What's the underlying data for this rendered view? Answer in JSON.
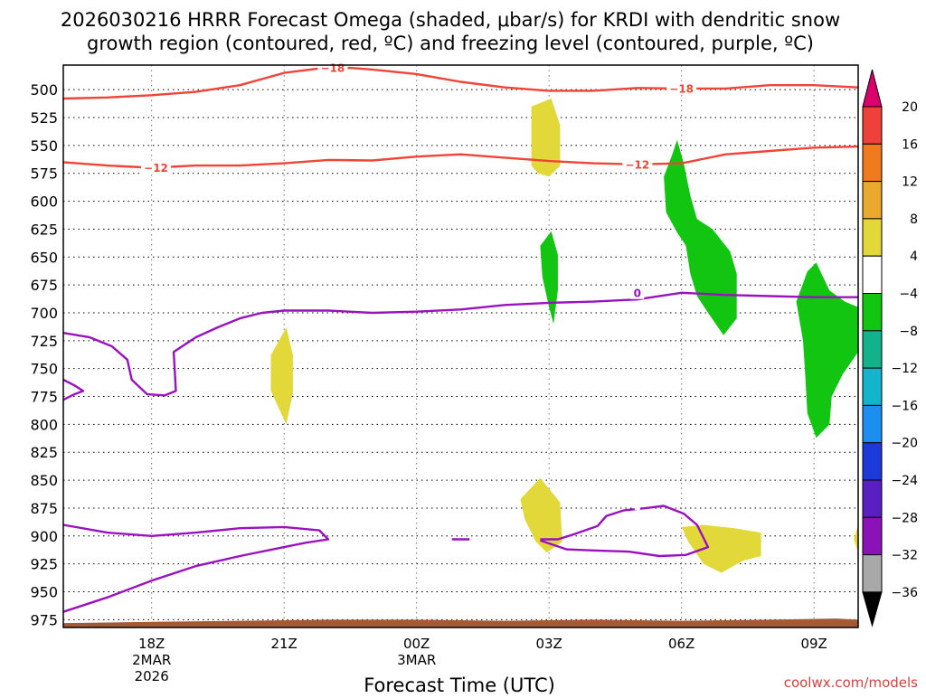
{
  "chart_data": {
    "type": "heatmap",
    "title_lines": [
      "2026030216 HRRR Forecast Omega (shaded, μbar/s) for KRDI with dendritic snow",
      "growth region (contoured, red, ºC) and freezing level (contoured, purple, ºC)"
    ],
    "xlabel": "Forecast Time (UTC)",
    "credit": "coolwx.com/models",
    "x_unit": "hours since 2026-03-02 16Z",
    "xlim": [
      0,
      18
    ],
    "y_unit": "mb",
    "ylim": [
      478,
      982
    ],
    "yticks": [
      500,
      525,
      550,
      575,
      600,
      625,
      650,
      675,
      700,
      725,
      750,
      775,
      800,
      825,
      850,
      875,
      900,
      925,
      950,
      975
    ],
    "xticks": [
      {
        "x": 2,
        "lines": [
          "18Z",
          "2MAR",
          "2026"
        ]
      },
      {
        "x": 5,
        "lines": [
          "21Z"
        ]
      },
      {
        "x": 8,
        "lines": [
          "00Z",
          "3MAR"
        ]
      },
      {
        "x": 11,
        "lines": [
          "03Z"
        ]
      },
      {
        "x": 14,
        "lines": [
          "06Z"
        ]
      },
      {
        "x": 17,
        "lines": [
          "09Z"
        ]
      }
    ],
    "colorbar": {
      "levels": [
        -36,
        -32,
        -28,
        -24,
        -20,
        -16,
        -12,
        -8,
        -4,
        4,
        8,
        12,
        16,
        20
      ],
      "labels": [
        "20",
        "16",
        "12",
        "8",
        "4",
        "−4",
        "−8",
        "−12",
        "−16",
        "−20",
        "−24",
        "−28",
        "−32",
        "−36"
      ],
      "bins": [
        "#d9006e",
        "#f0403c",
        "#f07b1e",
        "#e8a92e",
        "#e3d83a",
        "#ffffff",
        "#11c511",
        "#12b38a",
        "#12b5c9",
        "#1b8ef0",
        "#1b3ad9",
        "#5a1fc0",
        "#8a12b8",
        "#a8a8a8",
        "#000000"
      ]
    },
    "shaded_regions": [
      {
        "value_range": "4 to 8",
        "color": "#e3d83a",
        "points": [
          [
            10.6,
            568
          ],
          [
            10.6,
            515
          ],
          [
            11.05,
            508
          ],
          [
            11.25,
            532
          ],
          [
            11.25,
            568
          ],
          [
            11.0,
            578
          ],
          [
            10.75,
            575
          ]
        ]
      },
      {
        "value_range": "4 to 8",
        "color": "#e3d83a",
        "points": [
          [
            4.7,
            738
          ],
          [
            5.05,
            713
          ],
          [
            5.2,
            738
          ],
          [
            5.2,
            772
          ],
          [
            5.05,
            800
          ],
          [
            4.7,
            770
          ]
        ]
      },
      {
        "value_range": "4 to 8",
        "color": "#e3d83a",
        "points": [
          [
            10.35,
            867
          ],
          [
            10.8,
            848
          ],
          [
            11.25,
            870
          ],
          [
            11.3,
            905
          ],
          [
            10.95,
            915
          ],
          [
            10.7,
            905
          ],
          [
            10.45,
            885
          ]
        ]
      },
      {
        "value_range": "4 to 8",
        "color": "#e3d83a",
        "points": [
          [
            14.0,
            892
          ],
          [
            14.5,
            890
          ],
          [
            15.2,
            893
          ],
          [
            15.8,
            897
          ],
          [
            15.8,
            918
          ],
          [
            15.4,
            922
          ],
          [
            14.9,
            933
          ],
          [
            14.5,
            925
          ],
          [
            14.15,
            905
          ]
        ]
      },
      {
        "value_range": "4 to 8",
        "color": "#e3d83a",
        "points": [
          [
            17.9,
            903
          ],
          [
            18.0,
            890
          ],
          [
            18.0,
            915
          ]
        ]
      },
      {
        "value_range": "-4 to -8",
        "color": "#11c511",
        "points": [
          [
            13.6,
            578
          ],
          [
            13.8,
            557
          ],
          [
            13.9,
            545
          ],
          [
            14.05,
            566
          ],
          [
            14.2,
            595
          ],
          [
            14.35,
            616
          ],
          [
            14.7,
            625
          ],
          [
            15.1,
            645
          ],
          [
            15.25,
            665
          ],
          [
            15.25,
            705
          ],
          [
            14.95,
            720
          ],
          [
            14.6,
            700
          ],
          [
            14.35,
            685
          ],
          [
            14.2,
            665
          ],
          [
            14.1,
            640
          ],
          [
            13.9,
            628
          ],
          [
            13.65,
            610
          ]
        ]
      },
      {
        "value_range": "-4 to -8",
        "color": "#11c511",
        "points": [
          [
            10.8,
            640
          ],
          [
            11.05,
            627
          ],
          [
            11.2,
            648
          ],
          [
            11.2,
            680
          ],
          [
            11.1,
            710
          ],
          [
            11.0,
            695
          ],
          [
            10.85,
            668
          ]
        ]
      },
      {
        "value_range": "-4 to -8",
        "color": "#11c511",
        "points": [
          [
            16.6,
            690
          ],
          [
            16.85,
            663
          ],
          [
            17.05,
            655
          ],
          [
            17.35,
            680
          ],
          [
            17.7,
            690
          ],
          [
            18.0,
            695
          ],
          [
            18.0,
            735
          ],
          [
            17.65,
            755
          ],
          [
            17.4,
            775
          ],
          [
            17.35,
            800
          ],
          [
            17.05,
            812
          ],
          [
            16.85,
            790
          ],
          [
            16.8,
            755
          ],
          [
            16.75,
            725
          ]
        ]
      }
    ],
    "contours": [
      {
        "name": "temp -18 C",
        "group": "dendritic snow growth region",
        "value": -18,
        "label": "−18",
        "color": "#f04437",
        "points": [
          [
            0,
            508
          ],
          [
            1,
            507
          ],
          [
            2,
            505
          ],
          [
            3,
            502
          ],
          [
            4,
            496
          ],
          [
            5,
            485
          ],
          [
            5.8,
            481
          ],
          [
            6.5,
            480.5
          ],
          [
            7,
            482
          ],
          [
            8,
            486
          ],
          [
            9,
            493
          ],
          [
            10,
            498
          ],
          [
            11,
            501
          ],
          [
            12,
            501
          ],
          [
            13,
            498.5
          ],
          [
            14,
            499
          ],
          [
            15,
            499
          ],
          [
            16,
            496
          ],
          [
            17,
            496
          ],
          [
            18,
            498
          ]
        ],
        "labels_at": [
          [
            6.1,
            480.5
          ],
          [
            14.0,
            499
          ]
        ]
      },
      {
        "name": "temp -12 C",
        "group": "dendritic snow growth region",
        "value": -12,
        "label": "−12",
        "color": "#f04437",
        "points": [
          [
            0,
            565
          ],
          [
            1,
            568
          ],
          [
            2,
            570
          ],
          [
            3,
            568
          ],
          [
            4,
            568
          ],
          [
            5,
            566
          ],
          [
            6,
            563
          ],
          [
            7,
            563.5
          ],
          [
            8,
            560
          ],
          [
            9,
            558
          ],
          [
            10,
            561
          ],
          [
            11,
            564
          ],
          [
            12,
            566
          ],
          [
            13,
            567
          ],
          [
            14,
            566
          ],
          [
            15,
            558
          ],
          [
            16,
            555
          ],
          [
            17,
            552
          ],
          [
            18,
            551
          ]
        ],
        "labels_at": [
          [
            2.1,
            570
          ],
          [
            13.0,
            567
          ]
        ]
      },
      {
        "name": "freezing level upper",
        "group": "freezing level",
        "value": 0,
        "label": "0",
        "color": "#9a12c0",
        "points": [
          [
            0,
            718
          ],
          [
            0.6,
            722
          ],
          [
            1.1,
            730
          ],
          [
            1.45,
            742
          ],
          [
            1.55,
            760
          ],
          [
            1.9,
            773
          ],
          [
            2.3,
            774
          ],
          [
            2.55,
            770
          ],
          [
            2.5,
            735
          ],
          [
            3,
            722
          ],
          [
            3.5,
            713
          ],
          [
            4,
            705
          ],
          [
            4.5,
            700
          ],
          [
            5,
            698
          ],
          [
            6,
            698
          ],
          [
            7,
            700
          ],
          [
            8,
            699
          ],
          [
            9,
            697
          ],
          [
            10,
            693
          ],
          [
            11,
            691
          ],
          [
            12,
            690
          ],
          [
            13,
            688
          ],
          [
            14,
            682
          ],
          [
            15,
            684
          ],
          [
            16,
            685
          ],
          [
            17,
            686
          ],
          [
            18,
            686
          ]
        ],
        "labels_at": [
          [
            13.0,
            682
          ]
        ]
      },
      {
        "name": "freezing level left loop",
        "group": "freezing level",
        "value": 0,
        "label": "",
        "color": "#9a12c0",
        "points": [
          [
            0,
            760
          ],
          [
            0.25,
            765
          ],
          [
            0.45,
            770
          ],
          [
            0.25,
            773
          ],
          [
            0,
            778
          ]
        ],
        "labels_at": []
      },
      {
        "name": "freezing level lower left",
        "group": "freezing level",
        "value": 0,
        "label": "",
        "color": "#9a12c0",
        "points": [
          [
            0,
            890
          ],
          [
            1,
            897
          ],
          [
            2,
            900
          ],
          [
            3,
            897
          ],
          [
            4,
            893
          ],
          [
            5,
            892
          ],
          [
            5.8,
            895
          ],
          [
            6.0,
            903
          ],
          [
            5.5,
            906
          ],
          [
            5,
            910
          ],
          [
            4,
            918
          ],
          [
            3,
            927
          ],
          [
            2,
            940
          ],
          [
            1,
            955
          ],
          [
            0,
            968
          ]
        ],
        "labels_at": []
      },
      {
        "name": "freezing level blip",
        "group": "freezing level",
        "value": 0,
        "label": "",
        "color": "#9a12c0",
        "points": [
          [
            8.8,
            903
          ],
          [
            9.2,
            903
          ]
        ],
        "labels_at": []
      },
      {
        "name": "freezing level lower right",
        "group": "freezing level",
        "value": 0,
        "label": "",
        "color": "#9a12c0",
        "points": [
          [
            10.8,
            903
          ],
          [
            11.2,
            903
          ],
          [
            11.6,
            898
          ],
          [
            12.1,
            891
          ],
          [
            12.3,
            882
          ],
          [
            12.7,
            877
          ],
          [
            13.2,
            875
          ],
          [
            13.6,
            873
          ],
          [
            14.05,
            880
          ],
          [
            14.35,
            890
          ],
          [
            14.6,
            910
          ],
          [
            14.1,
            917
          ],
          [
            13.5,
            918
          ],
          [
            12.8,
            914
          ],
          [
            12.0,
            913
          ],
          [
            11.4,
            912
          ],
          [
            10.8,
            904
          ]
        ],
        "labels_at": [
          [
            13.0,
            871
          ]
        ]
      }
    ],
    "terrain": {
      "color": "#a35a35",
      "top_mb": [
        [
          0,
          978
        ],
        [
          2,
          977
        ],
        [
          4,
          976
        ],
        [
          6,
          975
        ],
        [
          8,
          975
        ],
        [
          10,
          976
        ],
        [
          12,
          975
        ],
        [
          14,
          976
        ],
        [
          16,
          975
        ],
        [
          17.5,
          974
        ],
        [
          18,
          975
        ]
      ]
    }
  }
}
